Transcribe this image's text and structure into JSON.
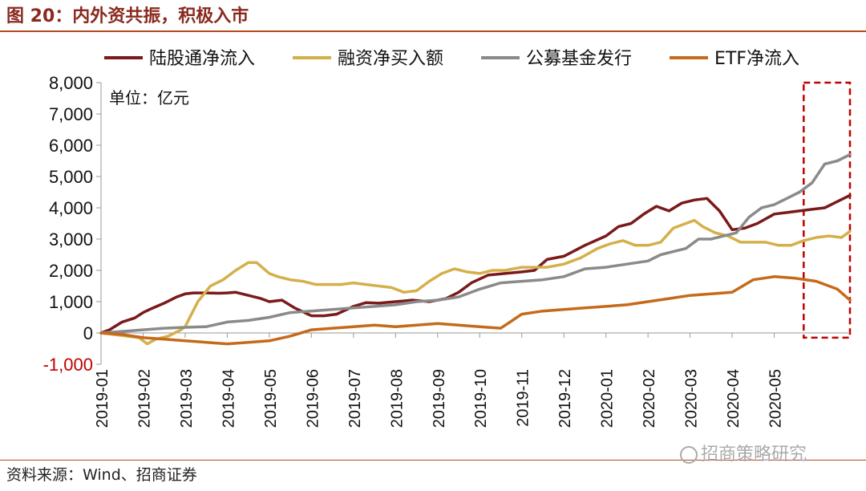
{
  "figure": {
    "title": "图 20：内外资共振，积极入市",
    "source": "资料来源：Wind、招商证券",
    "watermark": "招商策略研究"
  },
  "chart_data": {
    "type": "line",
    "unit_label": "单位：亿元",
    "ylim": [
      -1000,
      8000
    ],
    "y_ticks": [
      "8,000",
      "7,000",
      "6,000",
      "5,000",
      "4,000",
      "3,000",
      "2,000",
      "1,000",
      "0",
      "-1,000"
    ],
    "y_tick_values": [
      8000,
      7000,
      6000,
      5000,
      4000,
      3000,
      2000,
      1000,
      0,
      -1000
    ],
    "x_range": [
      0,
      17.8
    ],
    "x_ticks": [
      "2019-01",
      "2019-02",
      "2019-03",
      "2019-04",
      "2019-05",
      "2019-06",
      "2019-07",
      "2019-08",
      "2019-09",
      "2019-10",
      "2019-11",
      "2019-12",
      "2020-01",
      "2020-02",
      "2020-03",
      "2020-04",
      "2020-05"
    ],
    "x_tick_values": [
      0,
      1,
      2,
      3,
      4,
      5,
      6,
      7,
      8,
      9,
      10,
      11,
      12,
      13,
      14,
      15,
      16
    ],
    "legend_position": "top",
    "grid": false,
    "highlight_box": {
      "x_range": [
        16.7,
        17.8
      ],
      "y_range": [
        -150,
        8000
      ],
      "style": "dashed",
      "color": "#c00000"
    },
    "series": [
      {
        "name": "陆股通净流入",
        "color": "#7a1a1a",
        "x": [
          0,
          0.2,
          0.5,
          0.8,
          1.0,
          1.2,
          1.5,
          1.8,
          2.0,
          2.2,
          2.5,
          2.8,
          3.0,
          3.2,
          3.5,
          3.8,
          4.0,
          4.3,
          4.6,
          5.0,
          5.3,
          5.6,
          6.0,
          6.3,
          6.6,
          7.0,
          7.4,
          7.8,
          8.2,
          8.5,
          8.8,
          9.2,
          9.6,
          10.0,
          10.3,
          10.6,
          11.0,
          11.5,
          12.0,
          12.3,
          12.6,
          12.9,
          13.2,
          13.5,
          13.8,
          14.1,
          14.4,
          14.7,
          15.0,
          15.3,
          15.6,
          16.0,
          16.3,
          16.6,
          16.9,
          17.2,
          17.5,
          17.8
        ],
        "values": [
          0,
          100,
          350,
          480,
          650,
          780,
          950,
          1150,
          1250,
          1280,
          1280,
          1270,
          1280,
          1300,
          1200,
          1100,
          1000,
          1050,
          800,
          550,
          550,
          600,
          850,
          970,
          950,
          1000,
          1050,
          1000,
          1100,
          1300,
          1600,
          1850,
          1900,
          1950,
          2000,
          2350,
          2450,
          2800,
          3100,
          3400,
          3500,
          3800,
          4050,
          3900,
          4150,
          4250,
          4300,
          3900,
          3300,
          3350,
          3500,
          3800,
          3850,
          3900,
          3950,
          4000,
          4200,
          4400
        ]
      },
      {
        "name": "融资净买入额",
        "color": "#d4b04a",
        "x": [
          0,
          0.3,
          0.6,
          0.9,
          1.1,
          1.3,
          1.6,
          1.9,
          2.0,
          2.3,
          2.6,
          2.9,
          3.2,
          3.5,
          3.7,
          4.0,
          4.2,
          4.5,
          4.8,
          5.1,
          5.4,
          5.7,
          6.0,
          6.3,
          6.6,
          6.9,
          7.2,
          7.5,
          7.8,
          8.1,
          8.4,
          8.7,
          9.0,
          9.3,
          9.6,
          10.0,
          10.3,
          10.6,
          11.0,
          11.4,
          11.8,
          12.1,
          12.4,
          12.7,
          13.0,
          13.3,
          13.6,
          13.9,
          14.1,
          14.3,
          14.6,
          14.9,
          15.2,
          15.5,
          15.8,
          16.1,
          16.4,
          16.7,
          17.0,
          17.3,
          17.6,
          17.8
        ],
        "values": [
          0,
          -50,
          -100,
          -150,
          -350,
          -200,
          -100,
          100,
          200,
          1000,
          1500,
          1700,
          2000,
          2250,
          2250,
          1900,
          1800,
          1700,
          1650,
          1550,
          1550,
          1550,
          1600,
          1550,
          1500,
          1450,
          1300,
          1350,
          1650,
          1900,
          2050,
          1950,
          1900,
          2000,
          2000,
          2100,
          2100,
          2100,
          2200,
          2400,
          2700,
          2850,
          2950,
          2800,
          2800,
          2900,
          3350,
          3500,
          3600,
          3400,
          3200,
          3100,
          2900,
          2900,
          2900,
          2800,
          2800,
          2950,
          3050,
          3100,
          3050,
          3250
        ]
      },
      {
        "name": "公募基金发行",
        "color": "#8a8a8a",
        "x": [
          0,
          0.5,
          1.0,
          1.5,
          2.0,
          2.5,
          3.0,
          3.5,
          4.0,
          4.5,
          5.0,
          5.5,
          6.0,
          6.5,
          7.0,
          7.5,
          8.0,
          8.5,
          9.0,
          9.5,
          10.0,
          10.5,
          11.0,
          11.5,
          12.0,
          12.5,
          13.0,
          13.3,
          13.6,
          13.9,
          14.2,
          14.5,
          14.8,
          15.1,
          15.4,
          15.7,
          16.0,
          16.3,
          16.6,
          16.9,
          17.2,
          17.5,
          17.8
        ],
        "values": [
          0,
          50,
          100,
          150,
          180,
          200,
          350,
          400,
          500,
          650,
          700,
          750,
          800,
          850,
          900,
          1000,
          1050,
          1150,
          1400,
          1600,
          1650,
          1700,
          1800,
          2050,
          2100,
          2200,
          2300,
          2500,
          2600,
          2700,
          3000,
          3000,
          3100,
          3200,
          3700,
          4000,
          4100,
          4300,
          4500,
          4800,
          5400,
          5500,
          5700
        ]
      },
      {
        "name": "ETF净流入",
        "color": "#c56a1b",
        "x": [
          0,
          0.5,
          1.0,
          1.5,
          2.0,
          2.5,
          3.0,
          3.5,
          4.0,
          4.5,
          5.0,
          5.5,
          6.0,
          6.5,
          7.0,
          7.5,
          8.0,
          8.5,
          9.0,
          9.5,
          10.0,
          10.5,
          11.0,
          11.5,
          12.0,
          12.5,
          13.0,
          13.5,
          14.0,
          14.5,
          15.0,
          15.5,
          16.0,
          16.5,
          17.0,
          17.5,
          17.8
        ],
        "values": [
          0,
          -50,
          -150,
          -200,
          -250,
          -300,
          -350,
          -300,
          -250,
          -100,
          100,
          150,
          200,
          250,
          200,
          250,
          300,
          250,
          200,
          150,
          600,
          700,
          750,
          800,
          850,
          900,
          1000,
          1100,
          1200,
          1250,
          1300,
          1700,
          1800,
          1750,
          1650,
          1400,
          1050
        ]
      }
    ]
  }
}
